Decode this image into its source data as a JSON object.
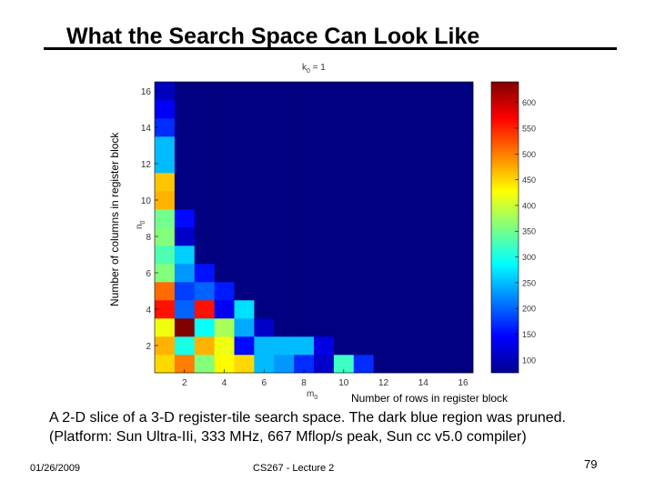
{
  "slide": {
    "title": "What the Search Space Can Look Like",
    "caption_line1": "A 2-D slice of a 3-D register-tile search space. The dark blue region was pruned.",
    "caption_line2": "(Platform: Sun Ultra-IIi, 333 MHz, 667 Mflop/s peak, Sun cc v5.0 compiler)",
    "footer_date": "01/26/2009",
    "footer_center": "CS267 - Lecture 2",
    "page_number": "79"
  },
  "chart_data": {
    "type": "heatmap",
    "title": "k0 = 1",
    "title_main": "k",
    "title_sub": "0",
    "title_rest": " = 1",
    "xlabel": "Number of rows in register block",
    "xsym_main": "m",
    "xsym_sub": "0",
    "ylabel": "Number of columns in register block",
    "ysym_main": "n",
    "ysym_sub": "0",
    "x_range": [
      1,
      16
    ],
    "y_range": [
      1,
      16
    ],
    "x_ticks": [
      2,
      4,
      6,
      8,
      10,
      12,
      14,
      16
    ],
    "y_ticks": [
      2,
      4,
      6,
      8,
      10,
      12,
      14,
      16
    ],
    "colorbar_range": [
      75,
      640
    ],
    "colorbar_ticks": [
      100,
      150,
      200,
      250,
      300,
      350,
      400,
      450,
      500,
      550,
      600
    ],
    "pruned_value": 75,
    "note": "cells maps n0 (row key) to values for m0 = 1..N; missing m0 are pruned",
    "cells": {
      "1": [
        450,
        500,
        360,
        430,
        450,
        250,
        230,
        170,
        115,
        320,
        170,
        75,
        75,
        75,
        75,
        75
      ],
      "2": [
        470,
        300,
        470,
        420,
        150,
        250,
        250,
        250,
        130
      ],
      "3": [
        420,
        640,
        290,
        380,
        240,
        115
      ],
      "4": [
        560,
        200,
        560,
        140,
        270
      ],
      "5": [
        510,
        180,
        200,
        160
      ],
      "6": [
        360,
        230,
        155
      ],
      "7": [
        330,
        260
      ],
      "8": [
        360,
        115
      ],
      "9": [
        350,
        150
      ],
      "10": [
        470
      ],
      "11": [
        460
      ],
      "12": [
        250
      ],
      "13": [
        250
      ],
      "14": [
        170
      ],
      "15": [
        140
      ],
      "16": [
        110
      ]
    }
  }
}
